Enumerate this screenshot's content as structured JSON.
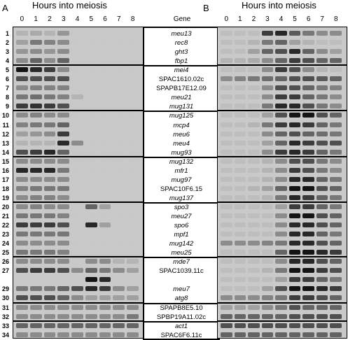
{
  "figure": {
    "panel_a": "A",
    "panel_b": "B",
    "header_a": "Hours into meiosis",
    "header_b": "Hours into meiosis",
    "gene_title": "Gene",
    "hours": [
      "0",
      "1",
      "2",
      "3",
      "4",
      "5",
      "6",
      "7",
      "8"
    ]
  },
  "rows": [
    {
      "num": "1",
      "gene": "meu13",
      "italic": true,
      "a": [
        0.1,
        0.15,
        0.1,
        0.25,
        0,
        0,
        0,
        0,
        0
      ],
      "b": [
        0.05,
        0.05,
        0.05,
        0.7,
        0.8,
        0.55,
        0.4,
        0.3,
        0.3
      ]
    },
    {
      "num": "2",
      "gene": "rec8",
      "italic": true,
      "a": [
        0.2,
        0.4,
        0.35,
        0.3,
        0,
        0,
        0,
        0,
        0
      ],
      "b": [
        0.05,
        0.05,
        0.1,
        0.4,
        0.5,
        0.2,
        0.1,
        0.05,
        0.05
      ]
    },
    {
      "num": "3",
      "gene": "ght3",
      "italic": true,
      "a": [
        0.25,
        0.3,
        0.25,
        0.3,
        0,
        0,
        0,
        0,
        0
      ],
      "b": [
        0.05,
        0.05,
        0.2,
        0.5,
        0.6,
        0.8,
        0.5,
        0.3,
        0.2
      ]
    },
    {
      "num": "4",
      "gene": "fbp1",
      "italic": true,
      "a": [
        0.3,
        0.5,
        0.3,
        0.5,
        0,
        0,
        0,
        0,
        0
      ],
      "b": [
        0.1,
        0.1,
        0.15,
        0.3,
        0.5,
        0.7,
        0.6,
        0.5,
        0.5
      ]
    },
    {
      "num": "5",
      "gene": "mei4",
      "italic": true,
      "a": [
        0.9,
        0.8,
        0.7,
        0.3,
        0,
        0,
        0,
        0,
        0
      ],
      "b": [
        0.05,
        0.05,
        0.05,
        0.3,
        0.7,
        0.6,
        0.3,
        0.1,
        0.05
      ]
    },
    {
      "num": "6",
      "gene": "SPAC1610.02c",
      "italic": false,
      "a": [
        0.6,
        0.6,
        0.6,
        0.6,
        0,
        0,
        0,
        0,
        0
      ],
      "b": [
        0.3,
        0.35,
        0.4,
        0.45,
        0.5,
        0.6,
        0.6,
        0.55,
        0.5
      ]
    },
    {
      "num": "7",
      "gene": "SPAPB17E12.09",
      "italic": false,
      "a": [
        0.3,
        0.35,
        0.35,
        0.35,
        0,
        0,
        0,
        0,
        0
      ],
      "b": [
        0.05,
        0.05,
        0.05,
        0.3,
        0.6,
        0.6,
        0.5,
        0.4,
        0.35
      ]
    },
    {
      "num": "8",
      "gene": "meu21",
      "italic": true,
      "a": [
        0.4,
        0.45,
        0.4,
        0.35,
        0.1,
        0,
        0,
        0,
        0
      ],
      "b": [
        0.05,
        0.05,
        0.05,
        0.3,
        0.7,
        0.7,
        0.5,
        0.4,
        0.3
      ]
    },
    {
      "num": "9",
      "gene": "mug131",
      "italic": true,
      "a": [
        0.7,
        0.75,
        0.7,
        0.6,
        0,
        0,
        0,
        0,
        0
      ],
      "b": [
        0.05,
        0.05,
        0.05,
        0.4,
        0.8,
        0.8,
        0.6,
        0.4,
        0.3
      ]
    },
    {
      "num": "10",
      "gene": "mug125",
      "italic": true,
      "a": [
        0.3,
        0.35,
        0.3,
        0.3,
        0,
        0,
        0,
        0,
        0
      ],
      "b": [
        0.05,
        0.05,
        0.05,
        0.2,
        0.6,
        0.9,
        0.9,
        0.6,
        0.5
      ]
    },
    {
      "num": "11",
      "gene": "mcp4",
      "italic": true,
      "a": [
        0.35,
        0.4,
        0.4,
        0.5,
        0,
        0,
        0,
        0,
        0
      ],
      "b": [
        0.05,
        0.05,
        0.1,
        0.4,
        0.7,
        0.8,
        0.7,
        0.5,
        0.4
      ]
    },
    {
      "num": "12",
      "gene": "meu6",
      "italic": true,
      "a": [
        0.2,
        0.25,
        0.3,
        0.7,
        0,
        0,
        0,
        0,
        0
      ],
      "b": [
        0.05,
        0.05,
        0.05,
        0.3,
        0.5,
        0.6,
        0.5,
        0.45,
        0.4
      ]
    },
    {
      "num": "13",
      "gene": "meu4",
      "italic": true,
      "a": [
        0.1,
        0.1,
        0.1,
        0.8,
        0.3,
        0,
        0,
        0,
        0
      ],
      "b": [
        0.05,
        0.05,
        0.05,
        0.2,
        0.5,
        0.8,
        0.7,
        0.6,
        0.6
      ]
    },
    {
      "num": "14",
      "gene": "mug93",
      "italic": true,
      "a": [
        0.6,
        0.7,
        0.8,
        0.5,
        0,
        0,
        0,
        0,
        0
      ],
      "b": [
        0.05,
        0.05,
        0.05,
        0.3,
        0.7,
        0.8,
        0.7,
        0.5,
        0.4
      ]
    },
    {
      "num": "15",
      "gene": "mug132",
      "italic": true,
      "a": [
        0.3,
        0.3,
        0.3,
        0.3,
        0,
        0,
        0,
        0,
        0
      ],
      "b": [
        0.05,
        0.05,
        0.05,
        0.1,
        0.3,
        0.6,
        0.6,
        0.4,
        0.3
      ]
    },
    {
      "num": "16",
      "gene": "mfr1",
      "italic": true,
      "a": [
        0.8,
        0.8,
        0.8,
        0.4,
        0,
        0,
        0,
        0,
        0
      ],
      "b": [
        0.05,
        0.05,
        0.05,
        0.1,
        0.3,
        0.7,
        0.6,
        0.4,
        0.3
      ]
    },
    {
      "num": "17",
      "gene": "mug97",
      "italic": true,
      "a": [
        0.3,
        0.3,
        0.3,
        0.3,
        0,
        0,
        0,
        0,
        0
      ],
      "b": [
        0.05,
        0.05,
        0.05,
        0.1,
        0.3,
        0.8,
        0.8,
        0.5,
        0.4
      ]
    },
    {
      "num": "18",
      "gene": "SPAC10F6.15",
      "italic": false,
      "a": [
        0.35,
        0.4,
        0.4,
        0.4,
        0,
        0,
        0,
        0,
        0
      ],
      "b": [
        0.05,
        0.05,
        0.1,
        0.2,
        0.5,
        0.9,
        0.9,
        0.6,
        0.5
      ]
    },
    {
      "num": "19",
      "gene": "mug137",
      "italic": true,
      "a": [
        0.3,
        0.35,
        0.35,
        0.3,
        0,
        0,
        0,
        0,
        0
      ],
      "b": [
        0.05,
        0.05,
        0.05,
        0.1,
        0.4,
        0.8,
        0.7,
        0.5,
        0.4
      ]
    },
    {
      "num": "20",
      "gene": "spo3",
      "italic": true,
      "a": [
        0.3,
        0.35,
        0.3,
        0.3,
        0,
        0.5,
        0.2,
        0,
        0
      ],
      "b": [
        0.05,
        0.05,
        0.05,
        0.05,
        0.2,
        0.7,
        0.7,
        0.5,
        0.4
      ]
    },
    {
      "num": "21",
      "gene": "meu27",
      "italic": true,
      "a": [
        0.4,
        0.4,
        0.4,
        0.35,
        0,
        0,
        0,
        0,
        0
      ],
      "b": [
        0.05,
        0.05,
        0.05,
        0.05,
        0.3,
        0.9,
        0.9,
        0.6,
        0.5
      ]
    },
    {
      "num": "22",
      "gene": "spo6",
      "italic": true,
      "a": [
        0.7,
        0.7,
        0.7,
        0.6,
        0,
        0.8,
        0.2,
        0,
        0
      ],
      "b": [
        0.05,
        0.05,
        0.05,
        0.05,
        0.3,
        0.8,
        0.8,
        0.6,
        0.5
      ]
    },
    {
      "num": "23",
      "gene": "mpf1",
      "italic": true,
      "a": [
        0.4,
        0.4,
        0.4,
        0.4,
        0,
        0,
        0,
        0,
        0
      ],
      "b": [
        0.05,
        0.05,
        0.05,
        0.05,
        0.3,
        0.8,
        0.8,
        0.5,
        0.4
      ]
    },
    {
      "num": "24",
      "gene": "mug142",
      "italic": true,
      "a": [
        0.3,
        0.3,
        0.3,
        0.3,
        0,
        0,
        0,
        0,
        0
      ],
      "b": [
        0.3,
        0.3,
        0.3,
        0.35,
        0.4,
        0.8,
        0.8,
        0.6,
        0.5
      ]
    },
    {
      "num": "25",
      "gene": "meu25",
      "italic": true,
      "a": [
        0.4,
        0.4,
        0.4,
        0.35,
        0,
        0,
        0,
        0,
        0
      ],
      "b": [
        0.05,
        0.05,
        0.05,
        0.05,
        0.5,
        0.9,
        0.9,
        0.8,
        0.7
      ]
    },
    {
      "num": "26",
      "gene": "mde7",
      "italic": true,
      "a": [
        0.3,
        0.3,
        0.3,
        0.3,
        0,
        0.3,
        0.3,
        0.1,
        0.1
      ],
      "b": [
        0.05,
        0.05,
        0.05,
        0.05,
        0.3,
        0.8,
        0.8,
        0.6,
        0.5
      ]
    },
    {
      "num": "27",
      "gene": "SPAC1039.11c",
      "italic": false,
      "a": [
        0.6,
        0.7,
        0.7,
        0.6,
        0.3,
        0.5,
        0.4,
        0.3,
        0.2
      ],
      "b": [
        0.05,
        0.05,
        0.05,
        0.1,
        0.4,
        0.9,
        0.9,
        0.7,
        0.6
      ]
    },
    {
      "num": "",
      "gene": "",
      "italic": false,
      "a": [
        0,
        0,
        0,
        0,
        0,
        0.9,
        0.8,
        0,
        0
      ],
      "b": [
        0.05,
        0.05,
        0.05,
        0.05,
        0.2,
        0.7,
        0.7,
        0.5,
        0.4
      ]
    },
    {
      "num": "29",
      "gene": "meu7",
      "italic": true,
      "a": [
        0.4,
        0.4,
        0.4,
        0.5,
        0.6,
        0.8,
        0.7,
        0.3,
        0.2
      ],
      "b": [
        0.05,
        0.05,
        0.05,
        0.2,
        0.6,
        0.9,
        0.9,
        0.8,
        0.7
      ]
    },
    {
      "num": "30",
      "gene": "atg8",
      "italic": true,
      "a": [
        0.6,
        0.6,
        0.6,
        0.5,
        0.3,
        0.2,
        0.2,
        0.2,
        0.2
      ],
      "b": [
        0.3,
        0.3,
        0.3,
        0.35,
        0.4,
        0.7,
        0.7,
        0.6,
        0.5
      ]
    },
    {
      "num": "31",
      "gene": "SPAPB8E5.10",
      "italic": false,
      "a": [
        0.3,
        0.3,
        0.3,
        0.3,
        0.3,
        0.3,
        0.3,
        0.3,
        0.3
      ],
      "b": [
        0.2,
        0.2,
        0.2,
        0.3,
        0.4,
        0.6,
        0.5,
        0.5,
        0.5
      ]
    },
    {
      "num": "32",
      "gene": "SPBP19A11.02c",
      "italic": false,
      "a": [
        0.3,
        0.3,
        0.3,
        0.3,
        0.3,
        0.3,
        0.3,
        0.3,
        0.4
      ],
      "b": [
        0.5,
        0.5,
        0.5,
        0.5,
        0.5,
        0.6,
        0.6,
        0.6,
        0.6
      ]
    },
    {
      "num": "33",
      "gene": "act1",
      "italic": true,
      "a": [
        0.5,
        0.5,
        0.5,
        0.5,
        0.5,
        0.5,
        0.5,
        0.5,
        0.5
      ],
      "b": [
        0.6,
        0.6,
        0.6,
        0.6,
        0.6,
        0.6,
        0.6,
        0.6,
        0.6
      ]
    },
    {
      "num": "34",
      "gene": "SPAC6F6.11c",
      "italic": false,
      "a": [
        0.3,
        0.3,
        0.3,
        0.3,
        0.3,
        0.3,
        0.3,
        0.3,
        0.3
      ],
      "b": [
        0.5,
        0.5,
        0.5,
        0.5,
        0.5,
        0.5,
        0.5,
        0.5,
        0.5
      ]
    }
  ],
  "group_breaks_after": [
    4,
    9,
    14,
    19,
    25,
    30,
    32
  ]
}
